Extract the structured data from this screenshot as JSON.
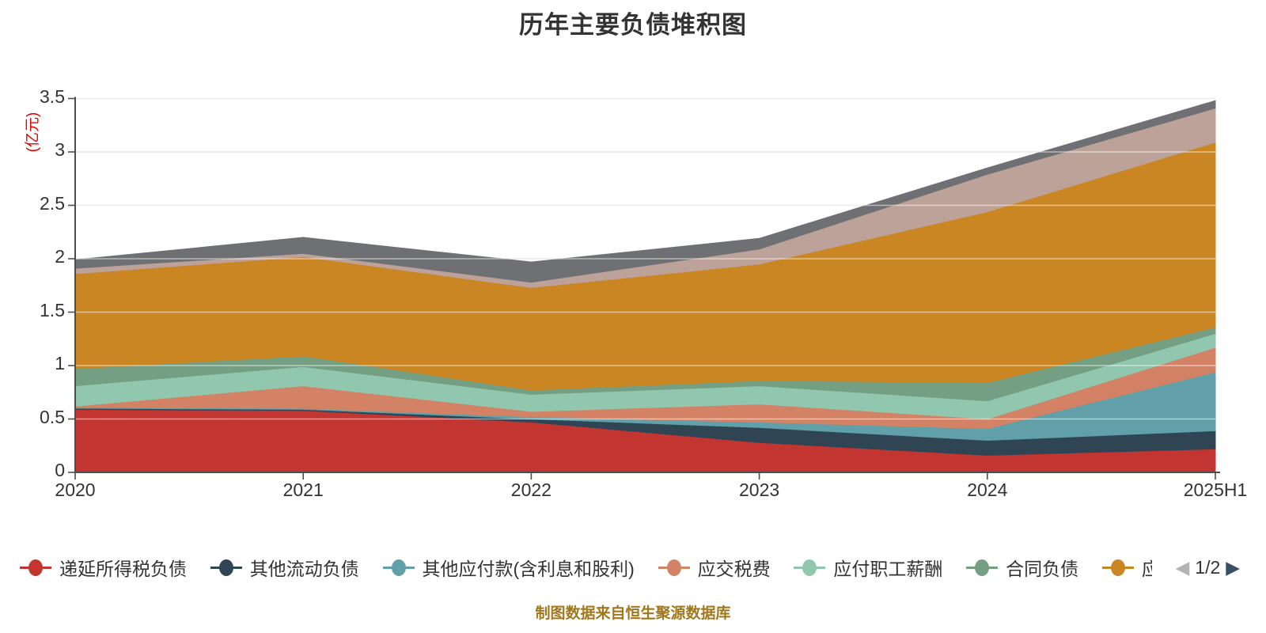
{
  "title": "历年主要负债堆积图",
  "y_axis": {
    "name": "(亿元)",
    "name_color": "#e60000",
    "tick_labels": [
      "0",
      "0.5",
      "1",
      "1.5",
      "2",
      "2.5",
      "3",
      "3.5"
    ]
  },
  "x_axis": {
    "labels": [
      "2020",
      "2021",
      "2022",
      "2023",
      "2024",
      "2025H1"
    ]
  },
  "legend": {
    "items": [
      {
        "label": "递延所得税负债",
        "color": "#c23531",
        "truncated": false
      },
      {
        "label": "其他流动负债",
        "color": "#2f4554",
        "truncated": false
      },
      {
        "label": "其他应付款(含利息和股利)",
        "color": "#61a0a8",
        "truncated": false
      },
      {
        "label": "应交税费",
        "color": "#d48265",
        "truncated": false
      },
      {
        "label": "应付职工薪酬",
        "color": "#91c7ae",
        "truncated": false
      },
      {
        "label": "合同负债",
        "color": "#749f83",
        "truncated": false
      },
      {
        "label": "应",
        "color": "#ca8622",
        "truncated": true
      }
    ],
    "pager": {
      "prev": "◀",
      "next": "▶",
      "text": "1/2",
      "prev_color": "#b3b3b3",
      "next_color": "#3a4f63"
    }
  },
  "footer": {
    "caption": "制图数据来自恒生聚源数据库",
    "color": "#a1771c"
  },
  "chart_data": {
    "type": "area",
    "stacked": true,
    "title": "历年主要负债堆积图",
    "ylabel": "(亿元)",
    "ylim": [
      0,
      3.5
    ],
    "grid": true,
    "legend_position": "bottom",
    "categories": [
      "2020",
      "2021",
      "2022",
      "2023",
      "2024",
      "2025H1"
    ],
    "series": [
      {
        "name": "递延所得税负债",
        "color": "#c23531",
        "values": [
          0.59,
          0.58,
          0.47,
          0.28,
          0.16,
          0.22
        ]
      },
      {
        "name": "其他流动负债",
        "color": "#2f4554",
        "values": [
          0.01,
          0.01,
          0.03,
          0.14,
          0.14,
          0.17
        ]
      },
      {
        "name": "其他应付款(含利息和股利)",
        "color": "#61a0a8",
        "values": [
          0.01,
          0.01,
          0.02,
          0.05,
          0.11,
          0.55
        ]
      },
      {
        "name": "应交税费",
        "color": "#d48265",
        "values": [
          0.01,
          0.21,
          0.05,
          0.17,
          0.09,
          0.23
        ]
      },
      {
        "name": "应付职工薪酬",
        "color": "#91c7ae",
        "values": [
          0.19,
          0.18,
          0.16,
          0.17,
          0.17,
          0.13
        ]
      },
      {
        "name": "合同负债",
        "color": "#749f83",
        "values": [
          0.16,
          0.1,
          0.04,
          0.05,
          0.17,
          0.06
        ]
      },
      {
        "name": "",
        "color": "#ca8622",
        "values": [
          0.89,
          0.93,
          0.96,
          1.09,
          1.6,
          1.73
        ]
      },
      {
        "name": "",
        "color": "#bda29a",
        "values": [
          0.05,
          0.03,
          0.05,
          0.14,
          0.35,
          0.32
        ]
      },
      {
        "name": "",
        "color": "#6e7074",
        "values": [
          0.08,
          0.15,
          0.19,
          0.1,
          0.06,
          0.07
        ]
      }
    ]
  }
}
